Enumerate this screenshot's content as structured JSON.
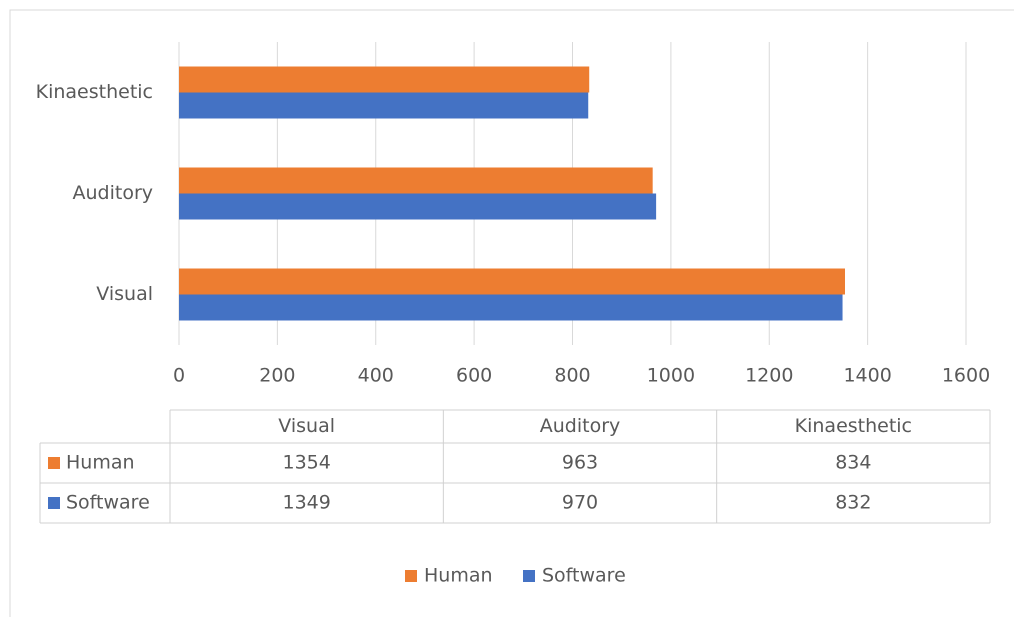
{
  "chart_data": {
    "type": "bar",
    "orientation": "horizontal",
    "categories": [
      "Visual",
      "Auditory",
      "Kinaesthetic"
    ],
    "series": [
      {
        "name": "Human",
        "color": "#ED7D31",
        "values": [
          1354,
          963,
          834
        ]
      },
      {
        "name": "Software",
        "color": "#4472C4",
        "values": [
          1349,
          970,
          832
        ]
      }
    ],
    "xlim": [
      0,
      1600
    ],
    "xticks": [
      0,
      200,
      400,
      600,
      800,
      1000,
      1200,
      1400,
      1600
    ],
    "grid": true,
    "data_table": true,
    "legend": "bottom"
  }
}
